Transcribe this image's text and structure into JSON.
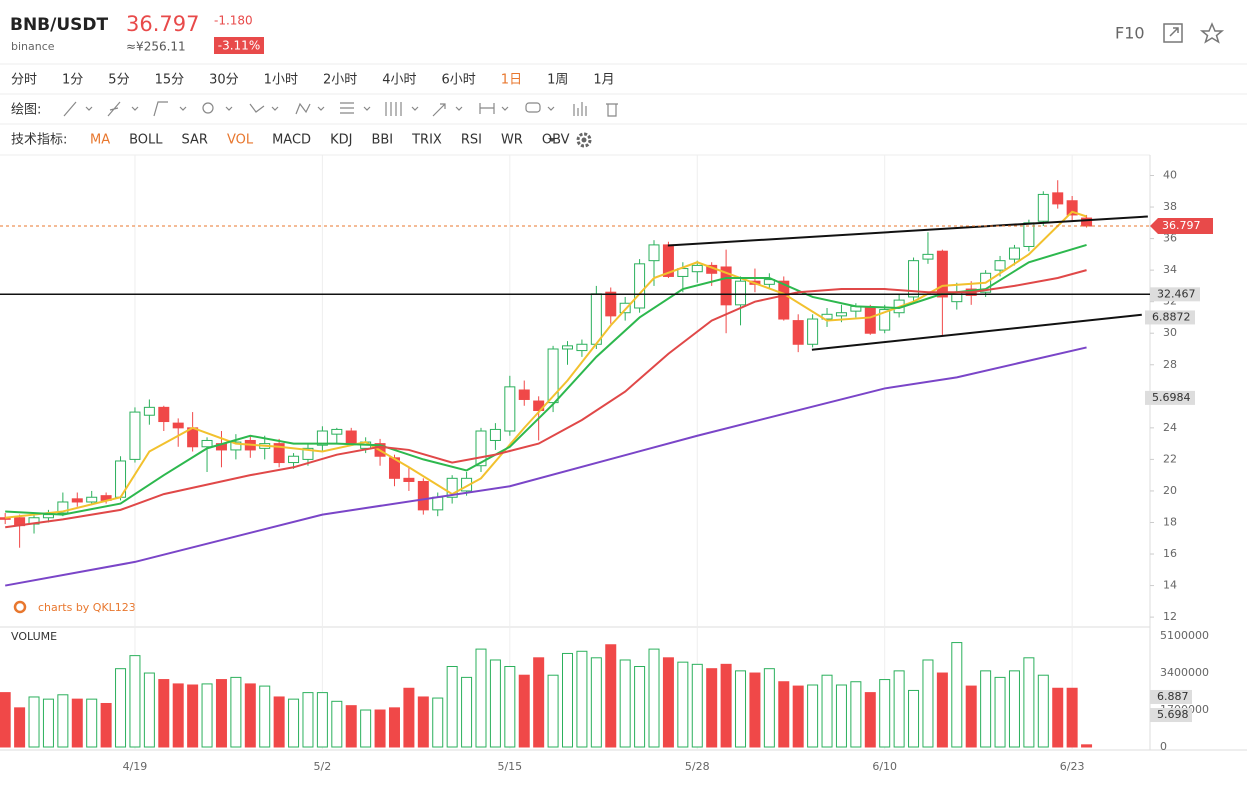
{
  "header": {
    "symbol": "BNB/USDT",
    "exchange": "binance",
    "price": "36.797",
    "change": "-1.180",
    "cny": "≈¥256.11",
    "change_pct": "-3.11%",
    "f10": "F10"
  },
  "toolbar": {
    "intervals": [
      "分时",
      "1分",
      "5分",
      "15分",
      "30分",
      "1小时",
      "2小时",
      "4小时",
      "6小时",
      "1日",
      "1周",
      "1月"
    ],
    "active_interval": 9,
    "draw_label": "绘图:",
    "indicator_label": "技术指标:",
    "indicators": [
      "MA",
      "BOLL",
      "SAR",
      "VOL",
      "MACD",
      "KDJ",
      "BBI",
      "TRIX",
      "RSI",
      "WR",
      "OBV"
    ],
    "active_indicators": [
      0,
      3
    ],
    "active_color": "#e8772e"
  },
  "chart_data": {
    "type": "candlestick",
    "watermark": "charts by QKL123",
    "volume_label": "VOLUME",
    "up_color": "#2bb05c",
    "down_color": "#f04848",
    "xlim": [
      -0.36,
      79.4
    ],
    "xticks": [
      {
        "value": 9,
        "label": "4/19"
      },
      {
        "value": 22,
        "label": "5/2"
      },
      {
        "value": 35,
        "label": "5/15"
      },
      {
        "value": 48,
        "label": "5/28"
      },
      {
        "value": 61,
        "label": "6/10"
      },
      {
        "value": 74,
        "label": "6/23"
      }
    ],
    "ylim": [
      11.5,
      41.3
    ],
    "yticks": [
      12,
      14,
      16,
      18,
      20,
      22,
      24,
      26,
      28,
      30,
      32,
      34,
      36,
      38,
      40
    ],
    "candles": [
      [
        18.3,
        18.6,
        17.9,
        18.2
      ],
      [
        18.3,
        18.5,
        16.4,
        17.8
      ],
      [
        17.9,
        18.5,
        17.3,
        18.3
      ],
      [
        18.3,
        18.8,
        18.0,
        18.5
      ],
      [
        18.6,
        19.9,
        18.4,
        19.3
      ],
      [
        19.5,
        19.9,
        19.0,
        19.3
      ],
      [
        19.3,
        20.0,
        19.1,
        19.6
      ],
      [
        19.7,
        19.9,
        19.2,
        19.4
      ],
      [
        19.6,
        22.2,
        19.4,
        21.9
      ],
      [
        22.0,
        25.3,
        21.8,
        25.0
      ],
      [
        24.8,
        25.8,
        24.2,
        25.3
      ],
      [
        25.3,
        25.4,
        23.8,
        24.4
      ],
      [
        24.3,
        24.6,
        22.8,
        24.0
      ],
      [
        24.0,
        25.0,
        22.5,
        22.8
      ],
      [
        22.8,
        23.4,
        21.2,
        23.2
      ],
      [
        23.0,
        23.8,
        21.5,
        22.6
      ],
      [
        22.6,
        23.6,
        22.0,
        23.1
      ],
      [
        23.2,
        23.5,
        22.1,
        22.6
      ],
      [
        22.7,
        23.5,
        22.0,
        23.0
      ],
      [
        23.0,
        23.3,
        21.5,
        21.8
      ],
      [
        21.8,
        22.4,
        21.4,
        22.2
      ],
      [
        22.0,
        23.0,
        21.6,
        22.7
      ],
      [
        22.9,
        24.1,
        22.5,
        23.8
      ],
      [
        23.6,
        24.0,
        23.0,
        23.9
      ],
      [
        23.8,
        24.0,
        22.9,
        23.0
      ],
      [
        22.7,
        23.4,
        22.4,
        23.1
      ],
      [
        23.0,
        23.3,
        21.6,
        22.2
      ],
      [
        22.1,
        22.3,
        20.3,
        20.8
      ],
      [
        20.8,
        21.5,
        20.0,
        20.6
      ],
      [
        20.6,
        20.8,
        18.5,
        18.8
      ],
      [
        18.8,
        19.9,
        18.4,
        19.6
      ],
      [
        19.6,
        21.0,
        19.2,
        20.8
      ],
      [
        20.0,
        21.2,
        19.7,
        20.8
      ],
      [
        21.6,
        24.0,
        21.2,
        23.8
      ],
      [
        23.2,
        24.3,
        22.6,
        23.9
      ],
      [
        23.8,
        27.3,
        23.5,
        26.6
      ],
      [
        26.4,
        27.0,
        25.4,
        25.8
      ],
      [
        25.7,
        26.0,
        23.2,
        25.1
      ],
      [
        25.6,
        29.2,
        25.0,
        29.0
      ],
      [
        29.0,
        29.5,
        28.0,
        29.2
      ],
      [
        28.9,
        29.6,
        28.5,
        29.3
      ],
      [
        29.3,
        33.0,
        29.0,
        32.5
      ],
      [
        32.6,
        32.9,
        30.6,
        31.1
      ],
      [
        31.3,
        32.3,
        30.8,
        31.9
      ],
      [
        31.6,
        34.7,
        31.3,
        34.4
      ],
      [
        34.6,
        35.9,
        33.0,
        35.6
      ],
      [
        35.6,
        35.8,
        33.5,
        33.6
      ],
      [
        33.6,
        34.5,
        32.6,
        34.1
      ],
      [
        33.9,
        34.6,
        33.2,
        34.3
      ],
      [
        34.3,
        34.5,
        33.0,
        33.8
      ],
      [
        34.2,
        35.3,
        30.0,
        31.8
      ],
      [
        31.8,
        33.6,
        30.5,
        33.3
      ],
      [
        33.3,
        34.1,
        32.6,
        33.1
      ],
      [
        33.1,
        33.8,
        32.8,
        33.4
      ],
      [
        33.3,
        33.6,
        30.8,
        30.9
      ],
      [
        30.8,
        31.2,
        28.8,
        29.3
      ],
      [
        29.3,
        31.2,
        29.1,
        30.9
      ],
      [
        30.9,
        31.6,
        30.4,
        31.2
      ],
      [
        31.1,
        31.8,
        30.7,
        31.3
      ],
      [
        31.4,
        31.9,
        31.0,
        31.7
      ],
      [
        31.6,
        31.8,
        29.9,
        30.0
      ],
      [
        30.2,
        31.8,
        30.0,
        31.5
      ],
      [
        31.3,
        32.5,
        31.0,
        32.1
      ],
      [
        32.3,
        34.8,
        32.0,
        34.6
      ],
      [
        34.7,
        36.4,
        34.4,
        35.0
      ],
      [
        35.2,
        35.3,
        29.8,
        32.3
      ],
      [
        32.0,
        33.2,
        31.5,
        32.6
      ],
      [
        32.8,
        33.3,
        31.8,
        32.4
      ],
      [
        32.6,
        34.0,
        32.3,
        33.8
      ],
      [
        34.0,
        34.9,
        33.6,
        34.6
      ],
      [
        34.7,
        35.6,
        34.3,
        35.4
      ],
      [
        35.5,
        37.2,
        35.2,
        37.0
      ],
      [
        37.1,
        39.0,
        36.8,
        38.8
      ],
      [
        38.9,
        39.7,
        37.9,
        38.2
      ],
      [
        38.4,
        38.7,
        37.1,
        37.5
      ],
      [
        37.3,
        37.5,
        36.7,
        36.797
      ]
    ],
    "ma": [
      {
        "color": "#f2c12e",
        "x": [
          0,
          4,
          8,
          10,
          13,
          16,
          19,
          22,
          25,
          28,
          31,
          33,
          36,
          39,
          42,
          45,
          48,
          51,
          54,
          57,
          60,
          63,
          65,
          68,
          71,
          74,
          75
        ],
        "values": [
          18.3,
          18.7,
          19.6,
          22.5,
          24.0,
          23.0,
          22.8,
          22.5,
          23.1,
          21.5,
          19.8,
          20.8,
          24.0,
          27.0,
          30.5,
          33.5,
          34.5,
          33.5,
          32.5,
          30.8,
          31.0,
          32.0,
          33.0,
          33.2,
          35.0,
          37.7,
          37.4
        ]
      },
      {
        "color": "#2db84e",
        "x": [
          0,
          4,
          8,
          11,
          14,
          17,
          20,
          23,
          26,
          29,
          32,
          35,
          38,
          41,
          44,
          47,
          50,
          53,
          56,
          59,
          62,
          65,
          68,
          71,
          75
        ],
        "values": [
          18.7,
          18.5,
          19.2,
          21.0,
          22.7,
          23.5,
          23.0,
          23.0,
          22.9,
          22.0,
          21.3,
          22.8,
          25.5,
          28.5,
          31.0,
          32.8,
          33.5,
          33.5,
          32.3,
          31.7,
          31.6,
          32.5,
          32.8,
          34.5,
          35.6
        ]
      },
      {
        "color": "#e04848",
        "x": [
          0,
          4,
          8,
          11,
          14,
          17,
          20,
          23,
          26,
          28,
          31,
          34,
          37,
          40,
          43,
          46,
          49,
          52,
          55,
          58,
          61,
          64,
          67,
          70,
          73,
          75
        ],
        "values": [
          17.7,
          18.2,
          18.8,
          19.8,
          20.4,
          21.0,
          21.5,
          22.3,
          22.8,
          22.6,
          21.8,
          22.3,
          23.0,
          24.5,
          26.3,
          28.7,
          30.8,
          32.0,
          32.6,
          32.8,
          32.8,
          32.6,
          32.6,
          33.0,
          33.5,
          34.0
        ]
      },
      {
        "color": "#7a45c8",
        "x": [
          0,
          9,
          22,
          35,
          48,
          61,
          66,
          75
        ],
        "values": [
          14.0,
          15.5,
          18.5,
          20.3,
          23.5,
          26.5,
          27.2,
          29.1
        ]
      }
    ],
    "trend_lines": [
      {
        "x": [
          45.96,
          79.25
        ],
        "values": [
          35.56,
          37.4
        ]
      },
      {
        "x": [
          55.95,
          78.83
        ],
        "values": [
          28.95,
          31.17
        ]
      }
    ],
    "h_line": {
      "value": 32.467,
      "label": "32.467"
    },
    "axis_markers": [
      {
        "value": 31.0,
        "label": "6.8872"
      },
      {
        "value": 25.9,
        "label": "5.6984"
      }
    ],
    "volume": {
      "ylim": [
        0,
        5470000
      ],
      "yticks": [
        0,
        {
          "value": 1700000,
          "label": "1700000"
        },
        3400000,
        5100000
      ],
      "values": [
        2500000,
        1800000,
        2300000,
        2200000,
        2400000,
        2200000,
        2200000,
        2000000,
        3600000,
        4200000,
        3400000,
        3100000,
        2900000,
        2850000,
        2900000,
        3100000,
        3200000,
        2900000,
        2800000,
        2300000,
        2200000,
        2500000,
        2500000,
        2100000,
        1900000,
        1700000,
        1700000,
        1800000,
        2700000,
        2300000,
        2250000,
        3700000,
        3200000,
        4500000,
        4000000,
        3700000,
        3300000,
        4100000,
        3300000,
        4300000,
        4400000,
        4100000,
        4700000,
        4000000,
        3700000,
        4500000,
        4100000,
        3900000,
        3800000,
        3600000,
        3800000,
        3500000,
        3400000,
        3600000,
        3000000,
        2800000,
        2850000,
        3300000,
        2850000,
        3000000,
        2500000,
        3100000,
        3500000,
        2600000,
        4000000,
        3400000,
        4800000,
        2800000,
        3500000,
        3200000,
        3500000,
        4100000,
        3300000,
        2700000,
        2700000,
        100000
      ],
      "markers": [
        {
          "value": 2300000,
          "label": "6.887"
        },
        {
          "value": 1470000,
          "label": "5.698"
        }
      ]
    }
  }
}
